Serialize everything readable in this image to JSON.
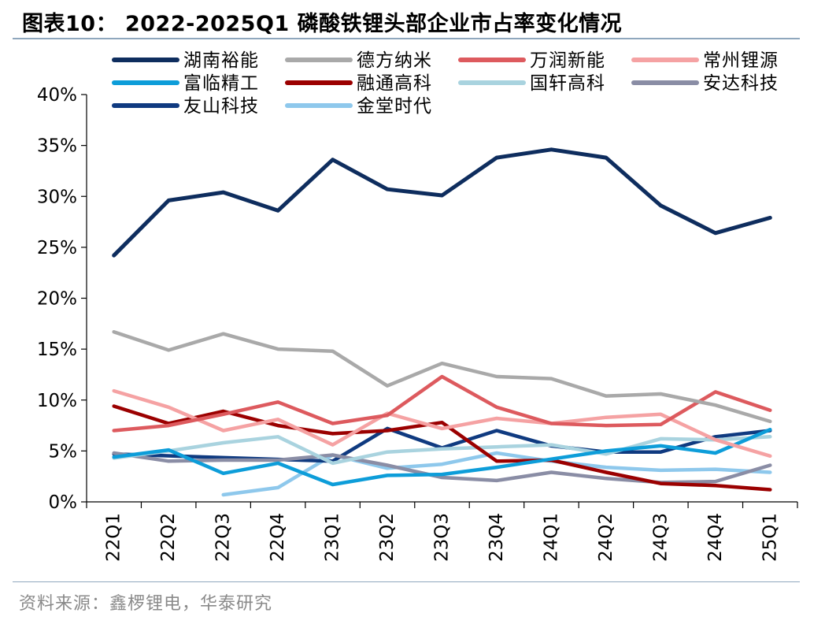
{
  "figure": {
    "title": "图表10： 2022-2025Q1 磷酸铁锂头部企业市占率变化情况",
    "source": "资料来源：鑫椤锂电，华泰研究"
  },
  "chart_data": {
    "type": "line",
    "categories": [
      "22Q1",
      "22Q2",
      "22Q3",
      "22Q4",
      "23Q1",
      "23Q2",
      "23Q3",
      "23Q4",
      "24Q1",
      "24Q2",
      "24Q3",
      "24Q4",
      "25Q1"
    ],
    "ylim": [
      0,
      40
    ],
    "yticks": [
      0,
      5,
      10,
      15,
      20,
      25,
      30,
      35,
      40
    ],
    "ytick_labels": [
      "0%",
      "5%",
      "10%",
      "15%",
      "20%",
      "25%",
      "30%",
      "35%",
      "40%"
    ],
    "unit": "%",
    "grid": false,
    "legend_position": "top",
    "series": [
      {
        "name": "湖南裕能",
        "color": "#0e2d5e",
        "values": [
          24.2,
          29.6,
          30.4,
          28.6,
          33.6,
          30.7,
          30.1,
          33.8,
          34.6,
          33.8,
          29.1,
          26.4,
          27.9
        ]
      },
      {
        "name": "德方纳米",
        "color": "#a9a9a9",
        "values": [
          16.7,
          14.9,
          16.5,
          15.0,
          14.8,
          11.4,
          13.6,
          12.3,
          12.1,
          10.4,
          10.6,
          9.5,
          7.9
        ]
      },
      {
        "name": "万润新能",
        "color": "#dd5a5e",
        "values": [
          7.0,
          7.5,
          8.6,
          9.8,
          7.7,
          8.5,
          12.3,
          9.3,
          7.7,
          7.5,
          7.6,
          10.8,
          9.0
        ]
      },
      {
        "name": "常州锂源",
        "color": "#f5a2a3",
        "values": [
          10.9,
          9.3,
          7.0,
          8.1,
          5.6,
          8.7,
          7.2,
          8.2,
          7.7,
          8.3,
          8.6,
          6.1,
          4.5
        ]
      },
      {
        "name": "富临精工",
        "color": "#0d9dd9",
        "values": [
          4.4,
          5.1,
          2.8,
          3.8,
          1.7,
          2.6,
          2.7,
          3.4,
          4.2,
          5.0,
          5.5,
          4.8,
          7.1
        ]
      },
      {
        "name": "融通高科",
        "color": "#9b0000",
        "values": [
          9.4,
          7.7,
          8.9,
          7.5,
          6.7,
          7.0,
          7.8,
          4.0,
          4.1,
          2.9,
          1.8,
          1.6,
          1.2
        ]
      },
      {
        "name": "国轩高科",
        "color": "#a9d3df",
        "values": [
          4.3,
          5.0,
          5.8,
          6.4,
          3.8,
          4.9,
          5.2,
          5.4,
          5.6,
          4.7,
          6.2,
          6.1,
          6.4
        ]
      },
      {
        "name": "安达科技",
        "color": "#8a8da5",
        "values": [
          4.8,
          4.0,
          4.1,
          4.1,
          4.6,
          3.6,
          2.4,
          2.1,
          2.9,
          2.3,
          1.9,
          2.0,
          3.6
        ]
      },
      {
        "name": "友山科技",
        "color": "#0f3a80",
        "values": [
          4.7,
          null,
          null,
          null,
          4.0,
          7.2,
          5.3,
          7.0,
          5.5,
          4.9,
          4.9,
          6.4,
          7.0
        ]
      },
      {
        "name": "金堂时代",
        "color": "#8ec8ec",
        "values": [
          null,
          null,
          0.7,
          1.4,
          4.6,
          3.3,
          3.7,
          4.8,
          4.0,
          3.4,
          3.1,
          3.2,
          2.9
        ]
      }
    ]
  }
}
